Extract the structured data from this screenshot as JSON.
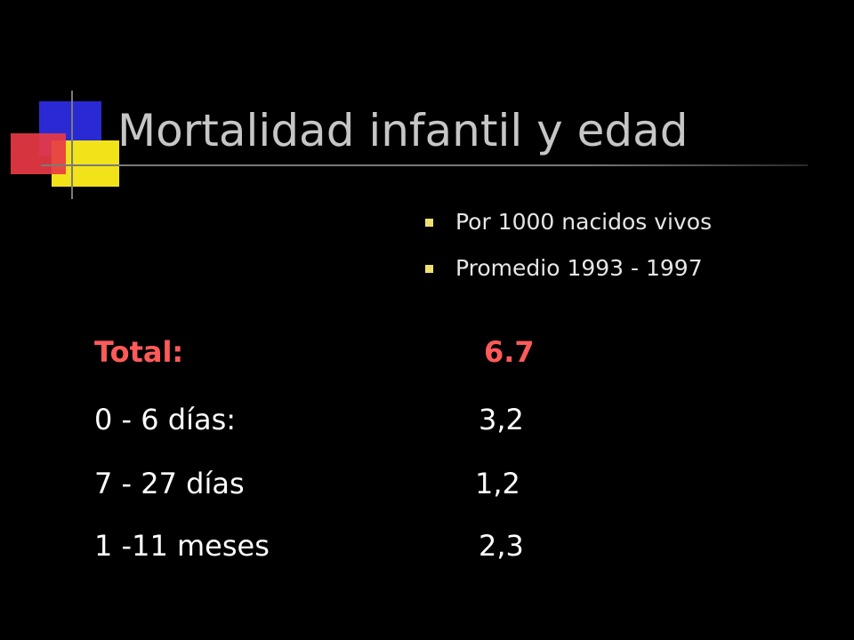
{
  "slide": {
    "title": "Mortalidad infantil y edad",
    "bullets": [
      {
        "text": "Por 1000 nacidos vivos"
      },
      {
        "text": "Promedio 1993 - 1997"
      }
    ],
    "rows": [
      {
        "label": "Total:",
        "value": "6.7"
      },
      {
        "label": "0 - 6 días:",
        "value": "3,2"
      },
      {
        "label": "7 - 27 días",
        "value": "1,2"
      },
      {
        "label": "1 -11 meses",
        "value": "2,3"
      }
    ]
  },
  "colors": {
    "background": "#000000",
    "title": "#c6c6c6",
    "text": "#ffffff",
    "highlight": "#ff5a5a",
    "bullet_mark": "#f0e070",
    "logo_blue": "#2a2ad4",
    "logo_yellow": "#f2e21a",
    "logo_red": "#e83a44",
    "rule": "#7a7a7a"
  }
}
